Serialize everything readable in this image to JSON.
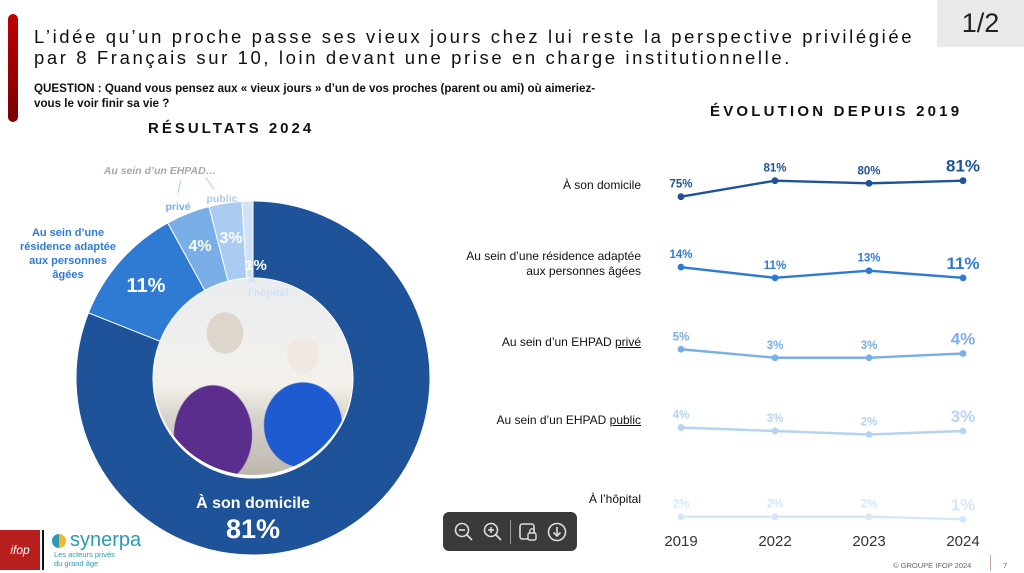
{
  "header": {
    "headline_line1": "L’idée qu’un proche passe ses vieux jours chez lui reste la perspective privilégiée",
    "headline_line2": "par 8 Français sur 10, loin devant une prise en charge institutionnelle.",
    "question_line1": "QUESTION : Quand vous pensez aux « vieux jours » d’un de vos proches (parent ou ami) où aimeriez-",
    "question_line2": "vous le voir finir sa vie ?",
    "page_indicator": "1/2",
    "accent_color": "#b00000"
  },
  "chart_data": [
    {
      "type": "pie",
      "subtype": "donut",
      "title": "RÉSULTATS 2024",
      "categories": [
        "À son domicile",
        "Au sein d’une résidence adaptée aux personnes âgées",
        "Au sein d’un EHPAD privé",
        "Au sein d’un EHPAD public",
        "À l’hôpital"
      ],
      "values": [
        81,
        11,
        4,
        3,
        1
      ],
      "value_labels": [
        "81%",
        "11%",
        "4%",
        "3%",
        "1%"
      ],
      "colors": [
        "#1f5399",
        "#2f7bd4",
        "#7aaee6",
        "#a9ccf0",
        "#cfe2f7"
      ],
      "labels": {
        "domicile": "À son domicile",
        "residence_lines": [
          "Au sein d’une",
          "résidence adaptée",
          "aux personnes",
          "âgées"
        ],
        "ehpad_group": "Au sein d’un EHPAD…",
        "prive": "privé",
        "public": "public",
        "hopital_lines": [
          "A",
          "l’hôpital"
        ]
      },
      "center_image": "photo-two-elderly-women"
    },
    {
      "type": "line",
      "title": "ÉVOLUTION DEPUIS 2019",
      "x": [
        "2019",
        "2022",
        "2023",
        "2024"
      ],
      "series": [
        {
          "name": "À son domicile",
          "values": [
            75,
            81,
            80,
            81
          ],
          "labels": [
            "75%",
            "81%",
            "80%",
            "81%"
          ],
          "color": "#1f5399"
        },
        {
          "name": "Au sein d’une résidence adaptée aux personnes âgées",
          "values": [
            14,
            11,
            13,
            11
          ],
          "labels": [
            "14%",
            "11%",
            "13%",
            "11%"
          ],
          "color": "#2f7bd4"
        },
        {
          "name": "Au sein d’un EHPAD privé",
          "values": [
            5,
            3,
            3,
            4
          ],
          "labels": [
            "5%",
            "3%",
            "3%",
            "4%"
          ],
          "color": "#7aaee6"
        },
        {
          "name": "Au sein d’un EHPAD public",
          "values": [
            4,
            3,
            2,
            3
          ],
          "labels": [
            "4%",
            "3%",
            "2%",
            "3%"
          ],
          "color": "#b5d3f2"
        },
        {
          "name": "À l’hôpital",
          "values": [
            2,
            2,
            2,
            1
          ],
          "labels": [
            "2%",
            "2%",
            "2%",
            "1%"
          ],
          "color": "#d6e7f9"
        }
      ],
      "row_labels": [
        {
          "lines": [
            "À son domicile"
          ]
        },
        {
          "lines": [
            "Au sein d’une résidence adaptée",
            "aux personnes âgées"
          ]
        },
        {
          "prefix": "Au sein d’un EHPAD ",
          "underlined": "privé"
        },
        {
          "prefix": "Au sein d’un EHPAD ",
          "underlined": "public"
        },
        {
          "lines": [
            "À l’hôpital"
          ]
        }
      ],
      "grid": false,
      "legend": "none"
    }
  ],
  "footer": {
    "copyright": "© GROUPE IFOP 2024",
    "page_number": "7",
    "logo_ifop": "ifop",
    "logo_synerpa": "synerpa",
    "logo_synerpa_tag_line1": "Les acteurs privés",
    "logo_synerpa_tag_line2": "du grand âge"
  },
  "viewer_toolbar": {
    "icons": [
      "zoom-out-icon",
      "zoom-in-icon",
      "presentation-lock-icon",
      "download-icon"
    ]
  }
}
